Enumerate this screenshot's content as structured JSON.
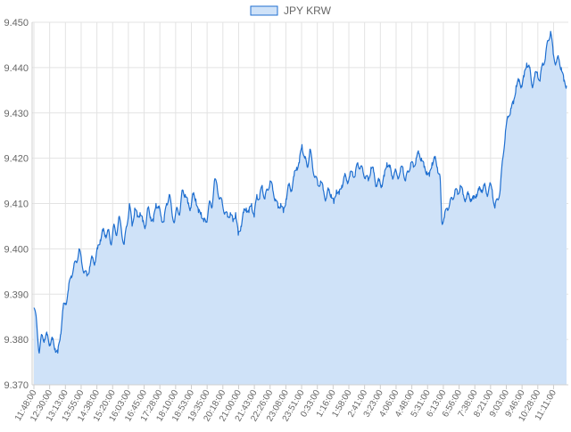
{
  "chart_data": {
    "type": "area",
    "legend": {
      "label": "JPY KRW",
      "placement": "top-center"
    },
    "ylim": [
      9.37,
      9.45
    ],
    "yticks": [
      "9.450",
      "9.440",
      "9.430",
      "9.420",
      "9.410",
      "9.400",
      "9.390",
      "9.380",
      "9.370"
    ],
    "grid": true,
    "xticks": [
      "11:48:00",
      "12:30:00",
      "13:13:00",
      "13:55:00",
      "14:38:00",
      "15:20:00",
      "16:03:00",
      "16:45:00",
      "17:28:00",
      "18:10:00",
      "18:53:00",
      "19:35:00",
      "20:18:00",
      "21:00:00",
      "21:43:00",
      "22:26:00",
      "23:08:00",
      "23:51:00",
      "0:33:00",
      "1:16:00",
      "1:58:00",
      "2:41:00",
      "3:23:00",
      "4:06:00",
      "4:48:00",
      "5:31:00",
      "6:13:00",
      "6:56:00",
      "7:38:00",
      "8:21:00",
      "9:03:00",
      "9:46:00",
      "10:28:00",
      "11:11:00"
    ],
    "series": [
      {
        "name": "JPY KRW",
        "color": "#1f6fd0",
        "fill": "#cfe2f8",
        "points": [
          [
            0,
            9.387
          ],
          [
            0.3,
            9.384
          ],
          [
            0.6,
            9.377
          ],
          [
            0.9,
            9.381
          ],
          [
            1.2,
            9.38
          ],
          [
            1.5,
            9.381
          ],
          [
            1.8,
            9.379
          ],
          [
            2.1,
            9.38
          ],
          [
            2.4,
            9.378
          ],
          [
            2.7,
            9.377
          ],
          [
            3.0,
            9.381
          ],
          [
            3.3,
            9.387
          ],
          [
            3.6,
            9.388
          ],
          [
            3.9,
            9.391
          ],
          [
            4.2,
            9.394
          ],
          [
            4.5,
            9.396
          ],
          [
            4.8,
            9.397
          ],
          [
            5.1,
            9.4
          ],
          [
            5.4,
            9.397
          ],
          [
            5.7,
            9.395
          ],
          [
            6.0,
            9.394
          ],
          [
            6.3,
            9.396
          ],
          [
            6.6,
            9.398
          ],
          [
            6.9,
            9.397
          ],
          [
            7.2,
            9.4
          ],
          [
            7.5,
            9.402
          ],
          [
            7.8,
            9.404
          ],
          [
            8.1,
            9.403
          ],
          [
            8.4,
            9.404
          ],
          [
            8.7,
            9.401
          ],
          [
            9.0,
            9.405
          ],
          [
            9.3,
            9.403
          ],
          [
            9.6,
            9.407
          ],
          [
            9.9,
            9.404
          ],
          [
            10.2,
            9.401
          ],
          [
            10.5,
            9.405
          ],
          [
            10.8,
            9.41
          ],
          [
            11.1,
            9.405
          ],
          [
            11.4,
            9.409
          ],
          [
            11.7,
            9.407
          ],
          [
            12.0,
            9.408
          ],
          [
            12.3,
            9.406
          ],
          [
            12.6,
            9.405
          ],
          [
            12.9,
            9.409
          ],
          [
            13.2,
            9.407
          ],
          [
            13.5,
            9.406
          ],
          [
            13.8,
            9.41
          ],
          [
            14.1,
            9.409
          ],
          [
            14.4,
            9.407
          ],
          [
            14.7,
            9.406
          ],
          [
            15.0,
            9.41
          ],
          [
            15.3,
            9.412
          ],
          [
            15.6,
            9.408
          ],
          [
            15.9,
            9.406
          ],
          [
            16.2,
            9.409
          ],
          [
            16.5,
            9.408
          ],
          [
            16.8,
            9.413
          ],
          [
            17.1,
            9.412
          ],
          [
            17.4,
            9.41
          ],
          [
            17.7,
            9.409
          ],
          [
            18.0,
            9.412
          ],
          [
            18.3,
            9.411
          ],
          [
            18.6,
            9.408
          ],
          [
            18.9,
            9.408
          ],
          [
            19.2,
            9.406
          ],
          [
            19.5,
            9.406
          ],
          [
            19.8,
            9.41
          ],
          [
            20.1,
            9.409
          ],
          [
            20.4,
            9.415
          ],
          [
            20.7,
            9.414
          ],
          [
            21.0,
            9.411
          ],
          [
            21.3,
            9.41
          ],
          [
            21.6,
            9.408
          ],
          [
            21.9,
            9.407
          ],
          [
            22.2,
            9.408
          ],
          [
            22.5,
            9.406
          ],
          [
            22.8,
            9.408
          ],
          [
            23.1,
            9.403
          ],
          [
            23.4,
            9.405
          ],
          [
            23.7,
            9.408
          ],
          [
            24.0,
            9.409
          ],
          [
            24.3,
            9.408
          ],
          [
            24.6,
            9.41
          ],
          [
            24.9,
            9.407
          ],
          [
            25.2,
            9.412
          ],
          [
            25.5,
            9.411
          ],
          [
            25.8,
            9.414
          ],
          [
            26.1,
            9.411
          ],
          [
            26.4,
            9.413
          ],
          [
            26.7,
            9.415
          ],
          [
            27.0,
            9.413
          ],
          [
            27.3,
            9.411
          ],
          [
            27.6,
            9.409
          ],
          [
            27.9,
            9.41
          ],
          [
            28.2,
            9.408
          ],
          [
            28.5,
            9.411
          ],
          [
            28.8,
            9.414
          ],
          [
            29.1,
            9.413
          ],
          [
            29.4,
            9.416
          ],
          [
            29.7,
            9.418
          ],
          [
            30.0,
            9.419
          ],
          [
            30.3,
            9.423
          ],
          [
            30.6,
            9.42
          ],
          [
            30.9,
            9.418
          ],
          [
            31.2,
            9.422
          ],
          [
            31.5,
            9.418
          ],
          [
            31.8,
            9.416
          ],
          [
            32.1,
            9.414
          ],
          [
            32.4,
            9.415
          ],
          [
            32.7,
            9.413
          ],
          [
            33.0,
            9.411
          ],
          [
            33.3,
            9.413
          ],
          [
            33.6,
            9.412
          ],
          [
            33.9,
            9.41
          ],
          [
            34.2,
            9.413
          ],
          [
            34.5,
            9.412
          ],
          [
            34.8,
            9.414
          ],
          [
            35.1,
            9.416
          ],
          [
            35.4,
            9.415
          ],
          [
            35.7,
            9.416
          ],
          [
            36.0,
            9.417
          ],
          [
            36.3,
            9.416
          ],
          [
            36.6,
            9.419
          ],
          [
            36.9,
            9.418
          ],
          [
            37.2,
            9.417
          ],
          [
            37.5,
            9.416
          ],
          [
            37.8,
            9.415
          ],
          [
            38.1,
            9.418
          ],
          [
            38.4,
            9.417
          ],
          [
            38.7,
            9.414
          ],
          [
            39.0,
            9.415
          ],
          [
            39.3,
            9.414
          ],
          [
            39.6,
            9.416
          ],
          [
            39.9,
            9.419
          ],
          [
            40.2,
            9.418
          ],
          [
            40.5,
            9.416
          ],
          [
            40.8,
            9.417
          ],
          [
            41.1,
            9.416
          ],
          [
            41.4,
            9.417
          ],
          [
            41.7,
            9.418
          ],
          [
            42.0,
            9.415
          ],
          [
            42.3,
            9.417
          ],
          [
            42.6,
            9.419
          ],
          [
            42.9,
            9.418
          ],
          [
            43.2,
            9.42
          ],
          [
            43.5,
            9.421
          ],
          [
            43.8,
            9.42
          ],
          [
            44.1,
            9.418
          ],
          [
            44.4,
            9.417
          ],
          [
            44.7,
            9.416
          ],
          [
            45.0,
            9.419
          ],
          [
            45.3,
            9.42
          ],
          [
            45.6,
            9.418
          ],
          [
            45.9,
            9.416
          ],
          [
            46.1,
            9.406
          ],
          [
            46.4,
            9.407
          ],
          [
            46.7,
            9.409
          ],
          [
            47.0,
            9.41
          ],
          [
            47.3,
            9.411
          ],
          [
            47.6,
            9.413
          ],
          [
            47.9,
            9.412
          ],
          [
            48.2,
            9.414
          ],
          [
            48.5,
            9.412
          ],
          [
            48.8,
            9.411
          ],
          [
            49.1,
            9.412
          ],
          [
            49.4,
            9.411
          ],
          [
            49.7,
            9.411
          ],
          [
            50.0,
            9.412
          ],
          [
            50.3,
            9.413
          ],
          [
            50.6,
            9.413
          ],
          [
            50.9,
            9.414
          ],
          [
            51.2,
            9.412
          ],
          [
            51.5,
            9.414
          ],
          [
            51.8,
            9.413
          ],
          [
            52.1,
            9.409
          ],
          [
            52.4,
            9.411
          ],
          [
            52.7,
            9.413
          ],
          [
            53.0,
            9.42
          ],
          [
            53.3,
            9.426
          ],
          [
            53.6,
            9.429
          ],
          [
            53.9,
            9.431
          ],
          [
            54.2,
            9.432
          ],
          [
            54.5,
            9.436
          ],
          [
            54.8,
            9.437
          ],
          [
            55.1,
            9.436
          ],
          [
            55.4,
            9.438
          ],
          [
            55.7,
            9.441
          ],
          [
            56.0,
            9.44
          ],
          [
            56.3,
            9.436
          ],
          [
            56.6,
            9.438
          ],
          [
            56.9,
            9.439
          ],
          [
            57.2,
            9.437
          ],
          [
            57.5,
            9.441
          ],
          [
            57.8,
            9.442
          ],
          [
            58.1,
            9.446
          ],
          [
            58.4,
            9.448
          ],
          [
            58.7,
            9.443
          ],
          [
            59.0,
            9.441
          ],
          [
            59.3,
            9.442
          ],
          [
            59.6,
            9.44
          ],
          [
            59.9,
            9.437
          ],
          [
            60.2,
            9.436
          ]
        ]
      }
    ]
  }
}
